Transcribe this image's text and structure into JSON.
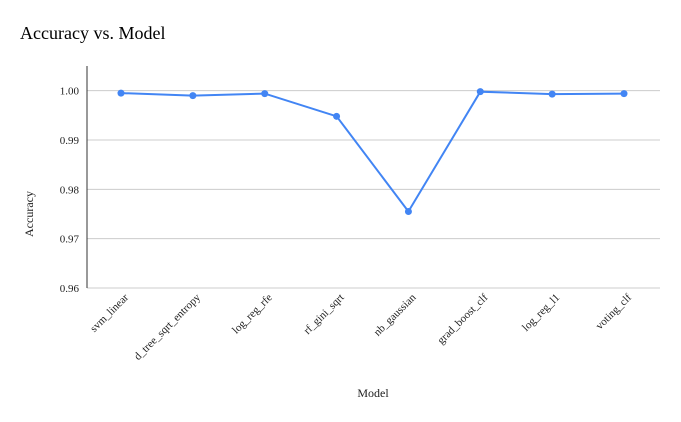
{
  "chart_data": {
    "type": "line",
    "title": "Accuracy vs. Model",
    "xlabel": "Model",
    "ylabel": "Accuracy",
    "categories": [
      "svm_linear",
      "d_tree_sqrt_entropy",
      "log_reg_rfe",
      "rf_gini_sqrt",
      "nb_gaussian",
      "grad_boost_clf",
      "log_reg_l1",
      "voting_clf"
    ],
    "series": [
      {
        "values": [
          0.9995,
          0.999,
          0.9994,
          0.9948,
          0.9755,
          0.9998,
          0.9993,
          0.9994
        ]
      }
    ],
    "ylim": [
      0.96,
      1.005
    ],
    "yticks": [
      0.96,
      0.97,
      0.98,
      0.99,
      1.0
    ],
    "ytick_labels": [
      "0.96",
      "0.97",
      "0.98",
      "0.99",
      "1.00"
    ],
    "grid": true,
    "legend": "none",
    "color": "#4285f4"
  }
}
